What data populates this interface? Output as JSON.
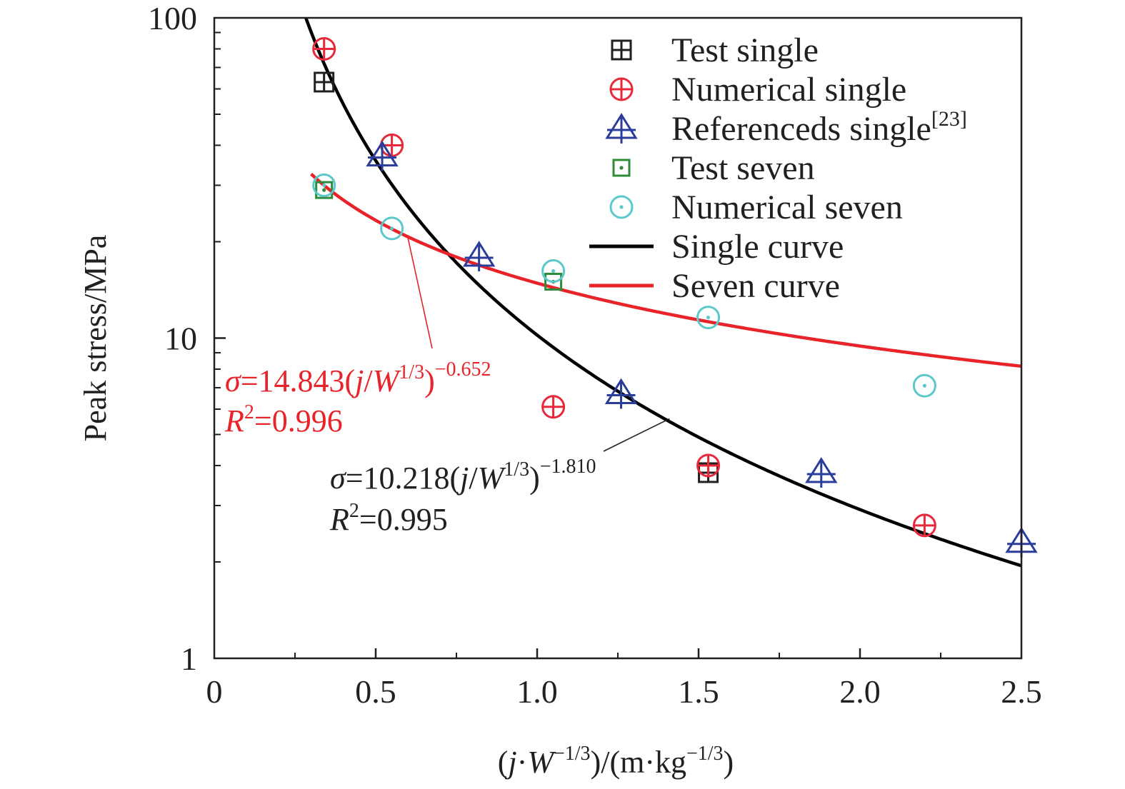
{
  "chart_data": {
    "type": "scatter",
    "xlabel": {
      "prefix": "(",
      "j": "j",
      "dot": "·",
      "W": "W",
      "exp1": "−1/3",
      "mid": ")/(m·kg",
      "exp2": "−1/3",
      "suffix": ")"
    },
    "ylabel": "Peak stress/MPa",
    "x_scale": "linear",
    "y_scale": "log",
    "xlim": [
      0,
      2.5
    ],
    "ylim": [
      1,
      100
    ],
    "x_ticks": [
      0,
      0.5,
      1.0,
      1.5,
      2.0,
      2.5
    ],
    "x_tick_labels": [
      "0",
      "0.5",
      "1.0",
      "1.5",
      "2.0",
      "2.5"
    ],
    "y_ticks": [
      1,
      10,
      100
    ],
    "y_tick_labels": [
      "1",
      "10",
      "100"
    ],
    "grid": false,
    "legend_position": "top-right",
    "series": [
      {
        "name": "Test single",
        "kind": "scatter",
        "marker": "square-grid",
        "color": "#231f20",
        "points": [
          [
            0.34,
            63
          ],
          [
            1.53,
            3.8
          ]
        ]
      },
      {
        "name": "Numerical single",
        "kind": "scatter",
        "marker": "circle-plus",
        "color": "#e8293a",
        "points": [
          [
            0.34,
            80
          ],
          [
            0.55,
            40
          ],
          [
            1.05,
            6.1
          ],
          [
            1.53,
            4.0
          ],
          [
            2.2,
            2.6
          ]
        ]
      },
      {
        "name": "Referenceds single",
        "name_superscript": "[23]",
        "kind": "scatter",
        "marker": "triangle-cross",
        "color": "#2b3d9a",
        "points": [
          [
            0.52,
            37
          ],
          [
            0.82,
            18
          ],
          [
            1.26,
            6.7
          ],
          [
            1.88,
            3.8
          ],
          [
            2.5,
            2.3
          ]
        ]
      },
      {
        "name": "Test seven",
        "kind": "scatter",
        "marker": "square-dot",
        "color": "#2e8b3a",
        "points": [
          [
            0.34,
            29
          ],
          [
            1.05,
            15
          ]
        ]
      },
      {
        "name": "Numerical seven",
        "kind": "scatter",
        "marker": "circle-dot",
        "color": "#5cc8cc",
        "points": [
          [
            0.34,
            30
          ],
          [
            0.55,
            22
          ],
          [
            1.05,
            16.2
          ],
          [
            1.53,
            11.6
          ],
          [
            2.2,
            7.1
          ]
        ]
      },
      {
        "name": "Single curve",
        "kind": "fit",
        "color": "#000000",
        "coefficient": 10.218,
        "exponent": -1.81,
        "x_range": [
          0.28,
          2.5
        ]
      },
      {
        "name": "Seven curve",
        "kind": "fit",
        "color": "#e8232a",
        "coefficient": 14.843,
        "exponent": -0.652,
        "x_range": [
          0.3,
          2.5
        ]
      }
    ],
    "annotations": [
      {
        "id": "seven",
        "color": "#e8232a",
        "lhs": "σ",
        "coef_text": "=14.843(",
        "j": "j",
        "slash": "/",
        "W": "W",
        "w_exp": "1/3",
        "close": ")",
        "exp": "−0.652",
        "r2_label": "R",
        "r2_sup": "2",
        "r2_text": "=0.996",
        "leader_to": [
          0.6,
          20.5
        ]
      },
      {
        "id": "single",
        "color": "#231f20",
        "lhs": "σ",
        "coef_text": "=10.218(",
        "j": "j",
        "slash": "/",
        "W": "W",
        "w_exp": "1/3",
        "close": ")",
        "exp": "−1.810",
        "r2_label": "R",
        "r2_sup": "2",
        "r2_text": "=0.995",
        "leader_to": [
          1.41,
          5.6
        ]
      }
    ]
  }
}
